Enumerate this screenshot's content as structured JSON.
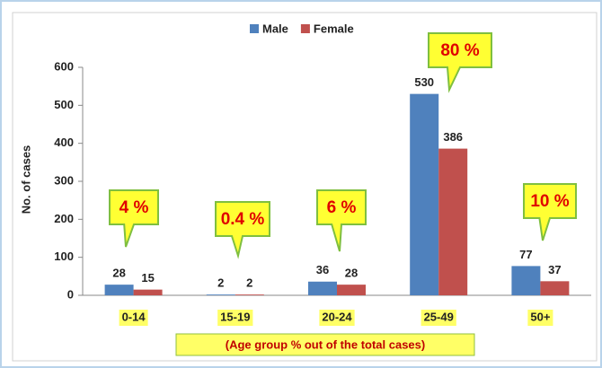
{
  "chart_data": {
    "type": "bar",
    "categories": [
      "0-14",
      "15-19",
      "20-24",
      "25-49",
      "50+"
    ],
    "series": [
      {
        "name": "Male",
        "color": "#4f81bd",
        "values": [
          28,
          2,
          36,
          530,
          77
        ]
      },
      {
        "name": "Female",
        "color": "#c0504d",
        "values": [
          15,
          2,
          28,
          386,
          37
        ]
      }
    ],
    "ylabel": "No. of cases",
    "xlabel": "(Age group % out of the total cases)",
    "annotations": [
      "4 %",
      "0.4 %",
      "6 %",
      "80 %",
      "10 %"
    ],
    "ylim": [
      0,
      600
    ],
    "yticks": [
      0,
      100,
      200,
      300,
      400,
      500,
      600
    ],
    "legend": "top"
  }
}
